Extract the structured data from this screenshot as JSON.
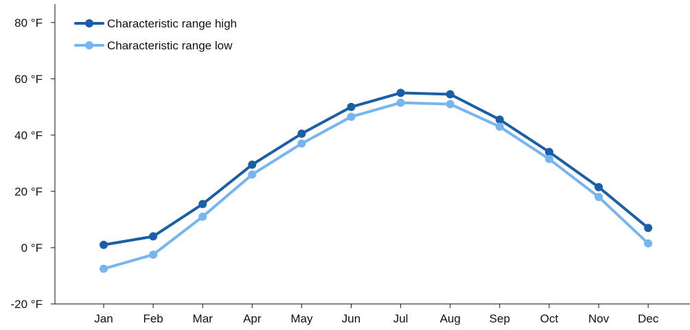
{
  "chart_data": {
    "type": "line",
    "title": "",
    "xlabel": "",
    "ylabel": "",
    "categories": [
      "Jan",
      "Feb",
      "Mar",
      "Apr",
      "May",
      "Jun",
      "Jul",
      "Aug",
      "Sep",
      "Oct",
      "Nov",
      "Dec"
    ],
    "y_ticks": [
      -20,
      0,
      20,
      40,
      60,
      80
    ],
    "y_tick_labels": [
      "-20 °F",
      "0 °F",
      "20 °F",
      "40 °F",
      "60 °F",
      "80 °F"
    ],
    "ylim": [
      -20,
      88
    ],
    "grid": false,
    "legend_position": "top-left",
    "series": [
      {
        "name": "Characteristic range high",
        "color": "#1a5ea8",
        "values": [
          1,
          4,
          15.5,
          29.5,
          40.5,
          50,
          55,
          54.5,
          45.5,
          34,
          21.5,
          7
        ]
      },
      {
        "name": "Characteristic range low",
        "color": "#76b5f0",
        "values": [
          -7.5,
          -2.5,
          11,
          26,
          37,
          46.5,
          51.5,
          51,
          43,
          31.5,
          18,
          1.5
        ]
      }
    ]
  }
}
